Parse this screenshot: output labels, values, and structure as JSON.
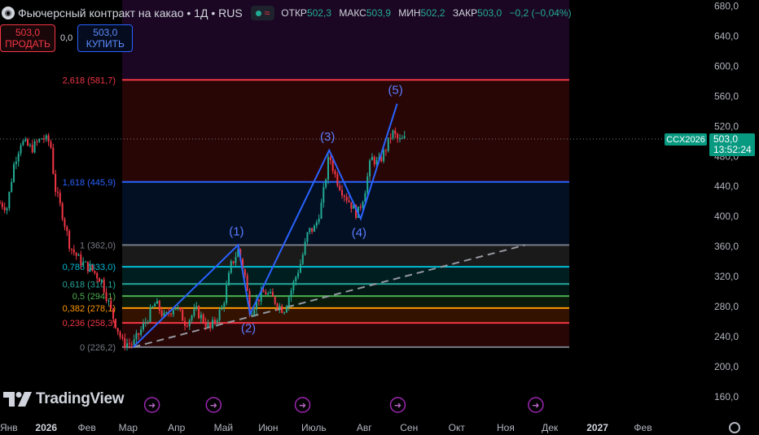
{
  "header": {
    "symbol_icon": "globe-icon",
    "title": "Фьючерсный контракт на какао • 1Д • RUS",
    "ohlc": {
      "open_label": "ОТКР",
      "open": "502,3",
      "high_label": "МАКС",
      "high": "503,9",
      "low_label": "МИН",
      "low": "502,2",
      "close_label": "ЗАКР",
      "close": "503,0",
      "change": "−0,2 (−0,04%)"
    }
  },
  "trade": {
    "sell_price": "503,0",
    "sell_label": "ПРОДАТЬ",
    "spread": "0,0",
    "buy_price": "503,0",
    "buy_label": "КУПИТЬ"
  },
  "price_tag": {
    "symbol": "CCX2026",
    "price": "503,0",
    "countdown": "13:52:24"
  },
  "logo": {
    "text": "TradingView",
    "icon": "tradingview-logo-icon"
  },
  "colors": {
    "up": "#22ab94",
    "down": "#f23645",
    "wave": "#2962ff",
    "accent": "#089981"
  },
  "chart_data": {
    "type": "candlestick",
    "y_axis": {
      "ticks": [
        160,
        200,
        240,
        280,
        320,
        360,
        400,
        440,
        480,
        520,
        560,
        600,
        640,
        680
      ],
      "labels": [
        "160,0",
        "200,0",
        "240,0",
        "280,0",
        "320,0",
        "360,0",
        "400,0",
        "440,0",
        "480,0",
        "520,0",
        "560,0",
        "600,0",
        "640,0",
        "680,0"
      ]
    },
    "x_axis": {
      "labels": [
        "Янв",
        "2026",
        "Фев",
        "Мар",
        "Апр",
        "Май",
        "Июн",
        "Июль",
        "Авг",
        "Сен",
        "Окт",
        "Ноя",
        "Дек",
        "2027",
        "Фев"
      ],
      "label_fractions": [
        0.0,
        0.066,
        0.124,
        0.183,
        0.252,
        0.319,
        0.383,
        0.448,
        0.52,
        0.584,
        0.652,
        0.722,
        0.785,
        0.853,
        0.918
      ]
    },
    "fibonacci": [
      {
        "level": "2,618",
        "price": 581.7,
        "label": "2,618 (581,7)",
        "color": "#f23645"
      },
      {
        "level": "1,618",
        "price": 445.9,
        "label": "1,618 (445,9)",
        "color": "#2962ff"
      },
      {
        "level": "1",
        "price": 362.0,
        "label": "1 (362,0)",
        "color": "#787b86"
      },
      {
        "level": "0,786",
        "price": 333.0,
        "label": "0,786 (333,0)",
        "color": "#00bcd4"
      },
      {
        "level": "0,618",
        "price": 310.1,
        "label": "0,618 (310,1)",
        "color": "#26a69a"
      },
      {
        "level": "0,5",
        "price": 294.1,
        "label": "0,5 (294,1)",
        "color": "#4caf50"
      },
      {
        "level": "0,382",
        "price": 278.1,
        "label": "0,382 (278,1)",
        "color": "#ff9800"
      },
      {
        "level": "0,236",
        "price": 258.3,
        "label": "0,236 (258,3)",
        "color": "#f23645"
      },
      {
        "level": "0",
        "price": 226.2,
        "label": "0 (226,2)",
        "color": "#787b86"
      }
    ],
    "fib_zones": [
      {
        "from": 581.7,
        "to": 690,
        "color": "#7b1fa2"
      },
      {
        "from": 445.9,
        "to": 581.7,
        "color": "#b71c1c"
      },
      {
        "from": 362.0,
        "to": 445.9,
        "color": "#0d47a1"
      },
      {
        "from": 333.0,
        "to": 362.0,
        "color": "#757575"
      },
      {
        "from": 310.1,
        "to": 333.0,
        "color": "#00838f"
      },
      {
        "from": 294.1,
        "to": 310.1,
        "color": "#00695c"
      },
      {
        "from": 278.1,
        "to": 294.1,
        "color": "#2e7d32"
      },
      {
        "from": 258.3,
        "to": 278.1,
        "color": "#e65100"
      },
      {
        "from": 226.2,
        "to": 258.3,
        "color": "#b71c1c"
      }
    ],
    "elliott_waves": [
      {
        "label": "",
        "x": 0.19,
        "price": 226
      },
      {
        "label": "(1)",
        "x": 0.34,
        "price": 362
      },
      {
        "label": "(2)",
        "x": 0.357,
        "price": 270
      },
      {
        "label": "(3)",
        "x": 0.47,
        "price": 488
      },
      {
        "label": "(4)",
        "x": 0.515,
        "price": 397
      },
      {
        "label": "(5)",
        "x": 0.567,
        "price": 550
      }
    ],
    "trendline": {
      "from": {
        "x": 0.19,
        "price": 226
      },
      "to": {
        "x": 0.75,
        "price": 362
      },
      "style": "dashed"
    },
    "last_price": 503.0,
    "candles_keypoints": [
      [
        0.0,
        418
      ],
      [
        0.01,
        412
      ],
      [
        0.02,
        470
      ],
      [
        0.03,
        500
      ],
      [
        0.045,
        490
      ],
      [
        0.06,
        505
      ],
      [
        0.072,
        498
      ],
      [
        0.078,
        440
      ],
      [
        0.09,
        400
      ],
      [
        0.1,
        360
      ],
      [
        0.115,
        340
      ],
      [
        0.13,
        330
      ],
      [
        0.145,
        315
      ],
      [
        0.16,
        270
      ],
      [
        0.175,
        232
      ],
      [
        0.19,
        230
      ],
      [
        0.205,
        255
      ],
      [
        0.222,
        285
      ],
      [
        0.235,
        265
      ],
      [
        0.25,
        282
      ],
      [
        0.265,
        258
      ],
      [
        0.28,
        275
      ],
      [
        0.3,
        250
      ],
      [
        0.318,
        280
      ],
      [
        0.33,
        335
      ],
      [
        0.34,
        355
      ],
      [
        0.35,
        320
      ],
      [
        0.357,
        272
      ],
      [
        0.368,
        290
      ],
      [
        0.378,
        300
      ],
      [
        0.39,
        290
      ],
      [
        0.405,
        275
      ],
      [
        0.415,
        300
      ],
      [
        0.43,
        340
      ],
      [
        0.44,
        380
      ],
      [
        0.45,
        385
      ],
      [
        0.46,
        420
      ],
      [
        0.47,
        482
      ],
      [
        0.48,
        450
      ],
      [
        0.49,
        432
      ],
      [
        0.5,
        418
      ],
      [
        0.51,
        402
      ],
      [
        0.52,
        430
      ],
      [
        0.53,
        478
      ],
      [
        0.54,
        470
      ],
      [
        0.55,
        488
      ],
      [
        0.56,
        512
      ],
      [
        0.57,
        500
      ],
      [
        0.578,
        503
      ]
    ]
  }
}
